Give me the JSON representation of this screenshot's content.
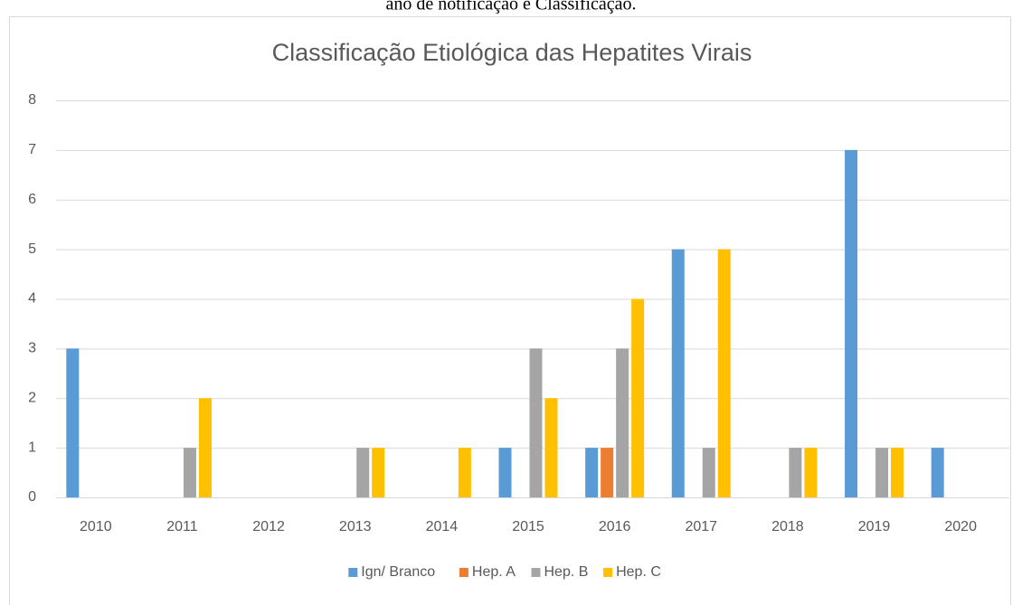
{
  "caption": "ano de notificação e Classificação.",
  "chart_data": {
    "type": "bar",
    "title": "Classificação Etiológica das Hepatites Virais",
    "categories": [
      "2010",
      "2011",
      "2012",
      "2013",
      "2014",
      "2015",
      "2016",
      "2017",
      "2018",
      "2019",
      "2020"
    ],
    "series": [
      {
        "name": "Ign/ Branco",
        "color": "#5b9bd5",
        "values": [
          3,
          0,
          0,
          0,
          0,
          1,
          1,
          5,
          0,
          7,
          1
        ]
      },
      {
        "name": "Hep. A",
        "color": "#ed7d31",
        "values": [
          0,
          0,
          0,
          0,
          0,
          0,
          1,
          0,
          0,
          0,
          0
        ]
      },
      {
        "name": "Hep. B",
        "color": "#a5a5a5",
        "values": [
          0,
          1,
          0,
          1,
          0,
          3,
          3,
          1,
          1,
          1,
          0
        ]
      },
      {
        "name": "Hep. C",
        "color": "#ffc000",
        "values": [
          0,
          2,
          0,
          1,
          1,
          2,
          4,
          5,
          1,
          1,
          0
        ]
      }
    ],
    "ylim": [
      0,
      8
    ],
    "yticks": [
      0,
      1,
      2,
      3,
      4,
      5,
      6,
      7,
      8
    ],
    "grid": true,
    "legend": "bottom"
  }
}
